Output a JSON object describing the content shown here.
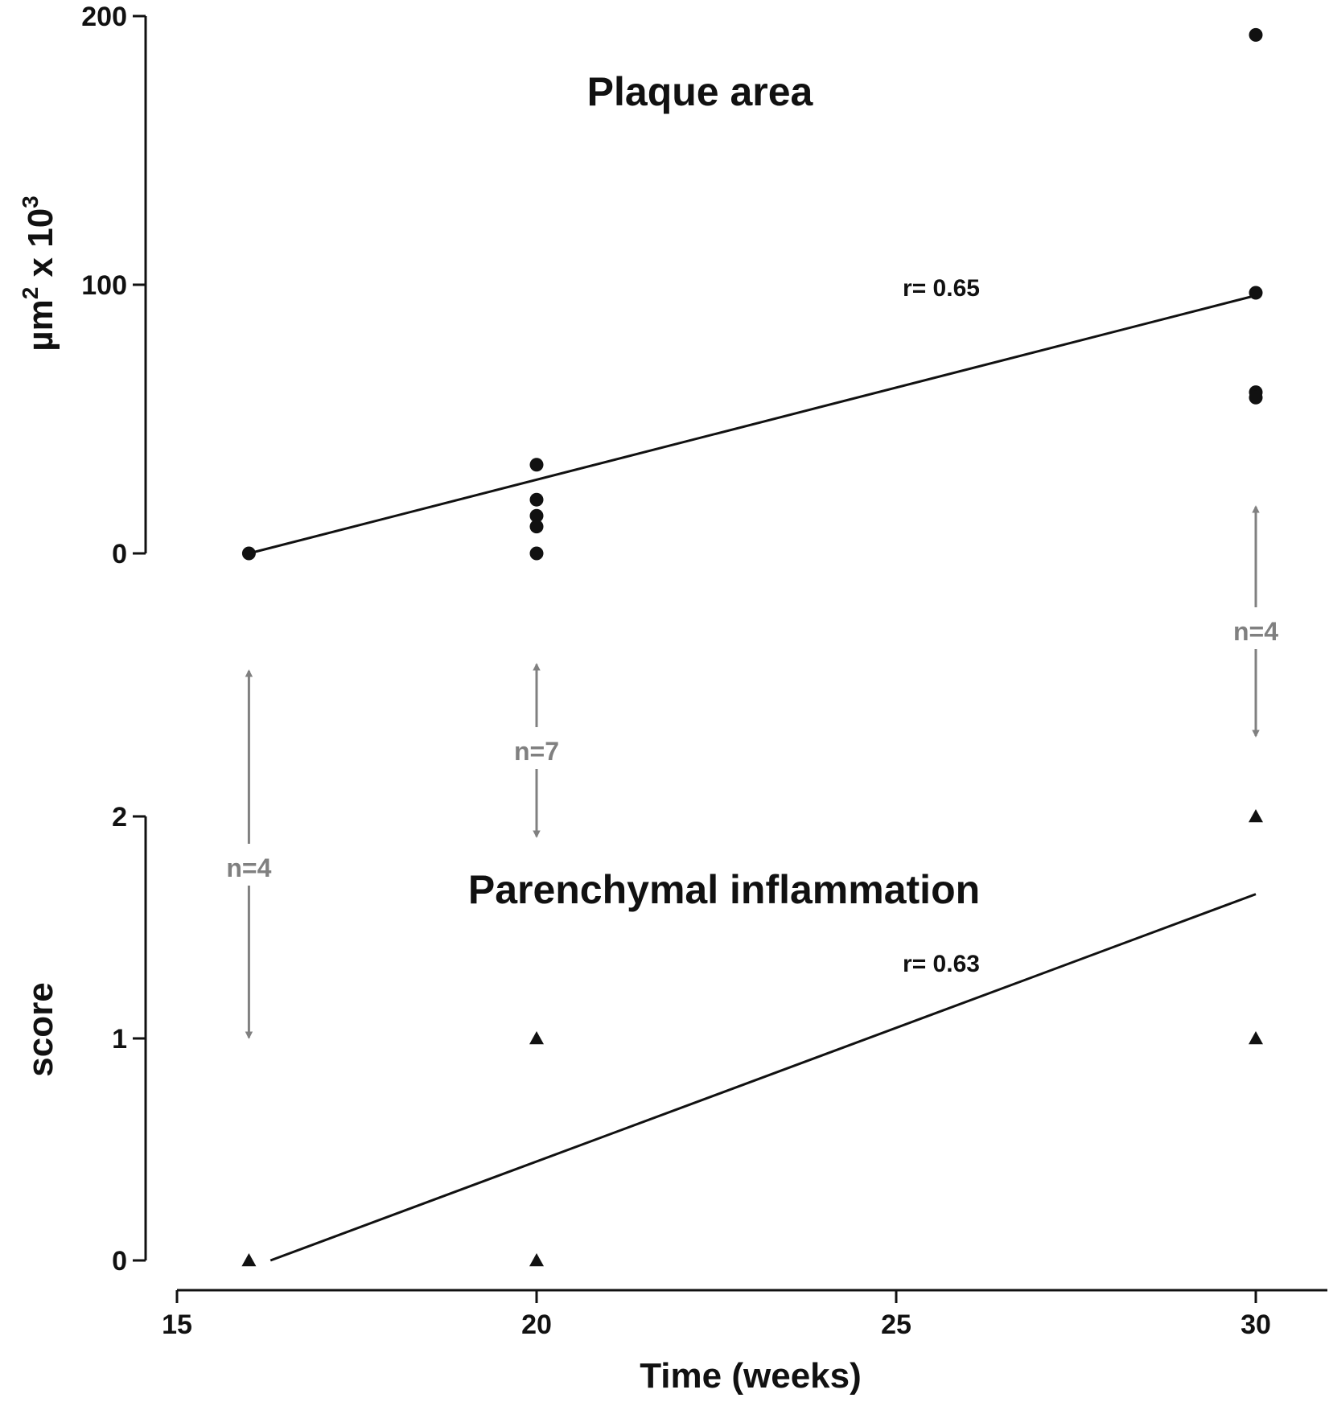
{
  "chart_data": [
    {
      "type": "scatter",
      "title": "Plaque area",
      "xlabel": "",
      "ylabel": "µm² x 10³",
      "ylabel_parts": {
        "base": "µm",
        "exp1": "2",
        "mid": " x 10",
        "exp2": "3"
      },
      "ylim": [
        0,
        200
      ],
      "yticks": [
        "0",
        "100",
        "200"
      ],
      "marker": "circle",
      "points": [
        {
          "x": 16,
          "y": 0
        },
        {
          "x": 20,
          "y": 33
        },
        {
          "x": 20,
          "y": 20
        },
        {
          "x": 20,
          "y": 14
        },
        {
          "x": 20,
          "y": 10
        },
        {
          "x": 20,
          "y": 0
        },
        {
          "x": 30,
          "y": 193
        },
        {
          "x": 30,
          "y": 97
        },
        {
          "x": 30,
          "y": 60
        },
        {
          "x": 30,
          "y": 58
        }
      ],
      "regression_line": {
        "x": [
          16,
          30
        ],
        "y": [
          0,
          96
        ]
      },
      "annotation": "r= 0.65"
    },
    {
      "type": "scatter",
      "title": "Parenchymal inflammation",
      "xlabel": "Time (weeks)",
      "ylabel": "score",
      "xlim": [
        15,
        31
      ],
      "xticks": [
        "15",
        "20",
        "25",
        "30"
      ],
      "ylim": [
        0,
        2
      ],
      "yticks": [
        "0",
        "1",
        "2"
      ],
      "marker": "triangle",
      "points": [
        {
          "x": 16,
          "y": 0
        },
        {
          "x": 20,
          "y": 1
        },
        {
          "x": 20,
          "y": 0
        },
        {
          "x": 30,
          "y": 2
        },
        {
          "x": 30,
          "y": 1
        }
      ],
      "regression_line": {
        "x": [
          16.3,
          30
        ],
        "y": [
          0,
          1.65
        ]
      },
      "annotation": "r= 0.63"
    }
  ],
  "sample_sizes": [
    {
      "label": "n=4",
      "x": 16
    },
    {
      "label": "n=7",
      "x": 20
    },
    {
      "label": "n=4",
      "x": 30
    }
  ],
  "colors": {
    "data": "#111111",
    "arrows": "#808080"
  }
}
